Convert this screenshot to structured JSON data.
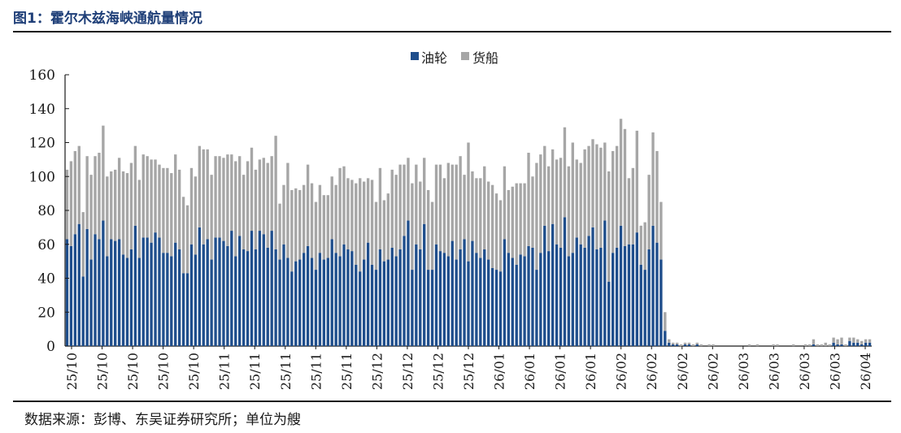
{
  "figure": {
    "title": "图1：霍尔木兹海峡通航量情况",
    "source": "数据来源：彭博、东吴证券研究所；单位为艘"
  },
  "colors": {
    "oil": "#1f4e8c",
    "cargo": "#a6a6a6",
    "axis": "#1a1a1a"
  },
  "chart_data": {
    "type": "bar",
    "stacked": true,
    "legend_position": "top-center",
    "grid": false,
    "ylim": [
      0,
      160
    ],
    "yticks": [
      0,
      20,
      40,
      60,
      80,
      100,
      120,
      140,
      160
    ],
    "xtick_labels": [
      "25/10",
      "25/10",
      "25/10",
      "25/10",
      "25/10",
      "25/11",
      "25/11",
      "25/11",
      "25/11",
      "25/11",
      "25/12",
      "25/12",
      "25/12",
      "25/12",
      "26/01",
      "26/01",
      "26/01",
      "26/01",
      "26/02",
      "26/02",
      "26/02",
      "26/02",
      "26/03",
      "26/03",
      "26/03",
      "26/03",
      "26/04"
    ],
    "series": [
      {
        "name": "油轮",
        "values": [
          63,
          59,
          66,
          72,
          41,
          69,
          51,
          66,
          63,
          74,
          53,
          63,
          62,
          63,
          54,
          52,
          57,
          71,
          52,
          64,
          64,
          61,
          67,
          64,
          55,
          55,
          53,
          61,
          57,
          43,
          43,
          60,
          54,
          70,
          60,
          63,
          51,
          64,
          64,
          62,
          59,
          68,
          53,
          65,
          57,
          56,
          68,
          57,
          68,
          66,
          58,
          68,
          57,
          51,
          60,
          52,
          44,
          50,
          51,
          55,
          59,
          52,
          45,
          55,
          51,
          52,
          63,
          55,
          53,
          60,
          57,
          56,
          48,
          44,
          51,
          61,
          48,
          45,
          57,
          50,
          51,
          58,
          53,
          57,
          65,
          74,
          45,
          60,
          57,
          72,
          45,
          45,
          60,
          56,
          55,
          53,
          62,
          51,
          57,
          63,
          50,
          62,
          55,
          52,
          57,
          51,
          46,
          45,
          44,
          63,
          55,
          52,
          48,
          54,
          53,
          59,
          58,
          45,
          55,
          71,
          56,
          72,
          60,
          58,
          76,
          53,
          55,
          64,
          60,
          58,
          65,
          70,
          57,
          58,
          74,
          38,
          55,
          58,
          71,
          59,
          60,
          60,
          67,
          48,
          45,
          57,
          71,
          61,
          51,
          9,
          2,
          1,
          1,
          0,
          1,
          1,
          0,
          1,
          0,
          0,
          0,
          0,
          0,
          0,
          0,
          0,
          0,
          0,
          0,
          0,
          0,
          0,
          0,
          0,
          0,
          0,
          0,
          0,
          0,
          0,
          0,
          0,
          0,
          0,
          0,
          0,
          1,
          0,
          0,
          0,
          0,
          2,
          1,
          1,
          0,
          3,
          2,
          2,
          1,
          2,
          2
        ]
      },
      {
        "name": "货船",
        "values": [
          41,
          50,
          49,
          46,
          38,
          43,
          50,
          46,
          51,
          56,
          47,
          40,
          42,
          48,
          49,
          50,
          51,
          47,
          46,
          49,
          48,
          49,
          43,
          43,
          50,
          50,
          49,
          52,
          47,
          45,
          40,
          45,
          46,
          48,
          56,
          53,
          50,
          48,
          48,
          49,
          54,
          45,
          56,
          47,
          44,
          53,
          49,
          47,
          42,
          45,
          50,
          44,
          67,
          33,
          35,
          56,
          48,
          43,
          41,
          40,
          48,
          44,
          40,
          40,
          38,
          37,
          37,
          40,
          52,
          46,
          42,
          42,
          48,
          55,
          46,
          38,
          50,
          40,
          48,
          36,
          39,
          46,
          48,
          50,
          42,
          37,
          51,
          47,
          40,
          39,
          47,
          40,
          47,
          51,
          44,
          55,
          45,
          56,
          55,
          38,
          70,
          41,
          44,
          47,
          49,
          46,
          49,
          45,
          42,
          43,
          37,
          42,
          48,
          42,
          43,
          55,
          42,
          63,
          58,
          47,
          50,
          44,
          50,
          53,
          53,
          53,
          65,
          46,
          48,
          58,
          53,
          52,
          62,
          59,
          46,
          65,
          60,
          60,
          63,
          69,
          39,
          45,
          60,
          23,
          28,
          44,
          55,
          54,
          34,
          11,
          2,
          1,
          1,
          1,
          1,
          1,
          1,
          1,
          1,
          0,
          1,
          1,
          0,
          0,
          0,
          0,
          0,
          0,
          0,
          0,
          1,
          0,
          1,
          0,
          0,
          0,
          1,
          1,
          0,
          0,
          0,
          1,
          0,
          0,
          1,
          1,
          3,
          1,
          1,
          2,
          1,
          3,
          3,
          4,
          1,
          2,
          3,
          2,
          2,
          2,
          2
        ]
      }
    ]
  }
}
